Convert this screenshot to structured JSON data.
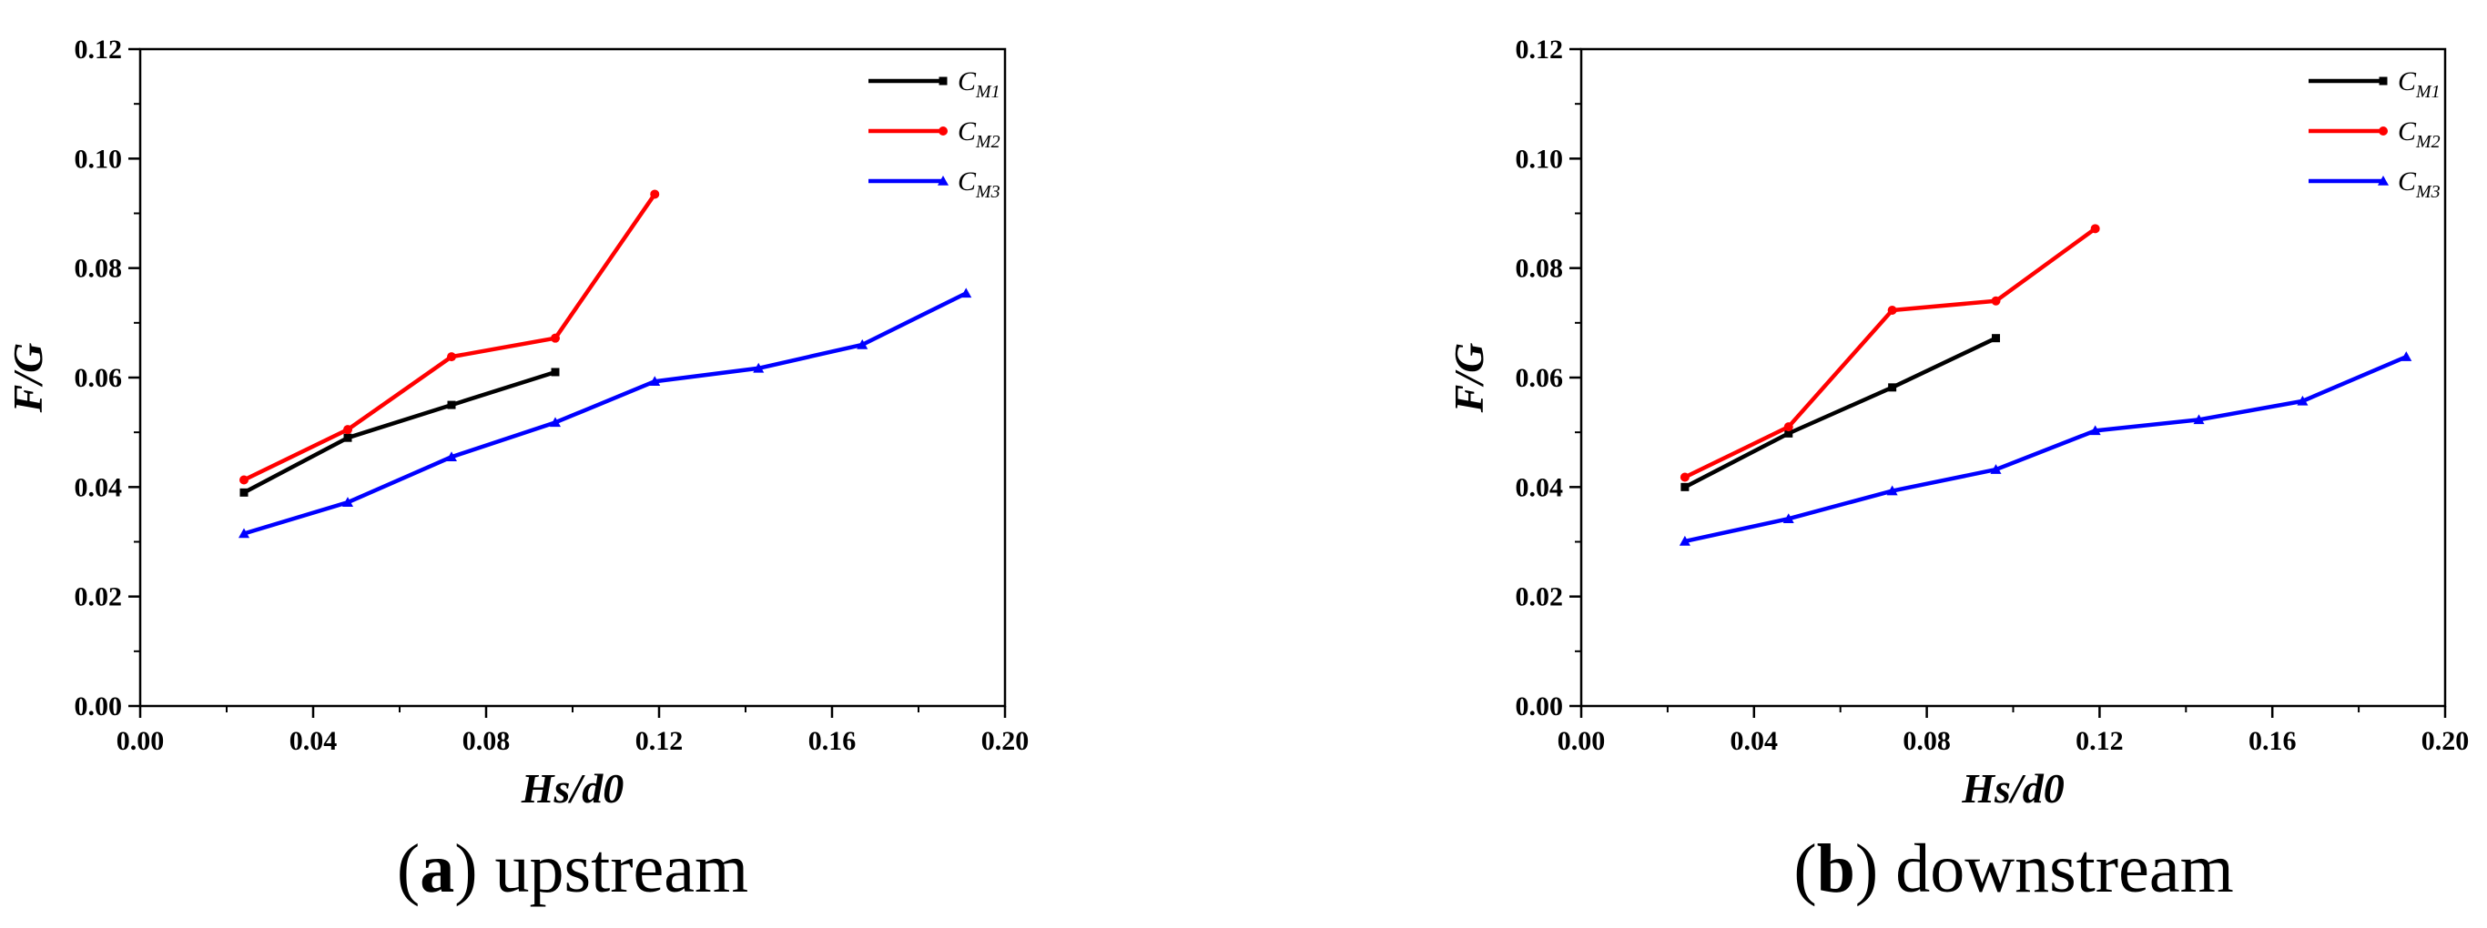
{
  "chart_data": [
    {
      "type": "line",
      "panel_id": "a",
      "caption_letter": "a",
      "caption_text": "upstream",
      "xlabel": "Hs/d0",
      "ylabel": "F/G",
      "xlim": [
        0.0,
        0.2
      ],
      "ylim": [
        0.0,
        0.12
      ],
      "xticks": [
        "0.00",
        "0.04",
        "0.08",
        "0.12",
        "0.16",
        "0.20"
      ],
      "yticks": [
        "0.00",
        "0.02",
        "0.04",
        "0.06",
        "0.08",
        "0.10",
        "0.12"
      ],
      "legend_position": "top-right",
      "series": [
        {
          "name": "CM1",
          "base": "C",
          "sub": "M1",
          "color": "#000000",
          "marker": "square",
          "x": [
            0.024,
            0.048,
            0.072,
            0.096
          ],
          "y": [
            0.039,
            0.049,
            0.055,
            0.061
          ]
        },
        {
          "name": "CM2",
          "base": "C",
          "sub": "M2",
          "color": "#ff0000",
          "marker": "circle",
          "x": [
            0.024,
            0.048,
            0.072,
            0.096,
            0.119
          ],
          "y": [
            0.0413,
            0.0505,
            0.0638,
            0.0672,
            0.0935
          ]
        },
        {
          "name": "CM3",
          "base": "C",
          "sub": "M3",
          "color": "#0000ff",
          "marker": "triangle",
          "x": [
            0.024,
            0.048,
            0.072,
            0.096,
            0.119,
            0.143,
            0.167,
            0.191
          ],
          "y": [
            0.0315,
            0.0372,
            0.0455,
            0.0518,
            0.0593,
            0.0617,
            0.066,
            0.0754
          ]
        }
      ]
    },
    {
      "type": "line",
      "panel_id": "b",
      "caption_letter": "b",
      "caption_text": "downstream",
      "xlabel": "Hs/d0",
      "ylabel": "F/G",
      "xlim": [
        0.0,
        0.2
      ],
      "ylim": [
        0.0,
        0.12
      ],
      "xticks": [
        "0.00",
        "0.04",
        "0.08",
        "0.12",
        "0.16",
        "0.20"
      ],
      "yticks": [
        "0.00",
        "0.02",
        "0.04",
        "0.06",
        "0.08",
        "0.10",
        "0.12"
      ],
      "legend_position": "top-right",
      "series": [
        {
          "name": "CM1",
          "base": "C",
          "sub": "M1",
          "color": "#000000",
          "marker": "square",
          "x": [
            0.024,
            0.048,
            0.072,
            0.096
          ],
          "y": [
            0.04,
            0.0498,
            0.0582,
            0.0672
          ]
        },
        {
          "name": "CM2",
          "base": "C",
          "sub": "M2",
          "color": "#ff0000",
          "marker": "circle",
          "x": [
            0.024,
            0.048,
            0.072,
            0.096,
            0.119
          ],
          "y": [
            0.0418,
            0.051,
            0.0723,
            0.074,
            0.0872
          ]
        },
        {
          "name": "CM3",
          "base": "C",
          "sub": "M3",
          "color": "#0000ff",
          "marker": "triangle",
          "x": [
            0.024,
            0.048,
            0.072,
            0.096,
            0.119,
            0.143,
            0.167,
            0.191
          ],
          "y": [
            0.0301,
            0.0342,
            0.0393,
            0.0432,
            0.0503,
            0.0523,
            0.0557,
            0.0638
          ]
        }
      ]
    }
  ]
}
